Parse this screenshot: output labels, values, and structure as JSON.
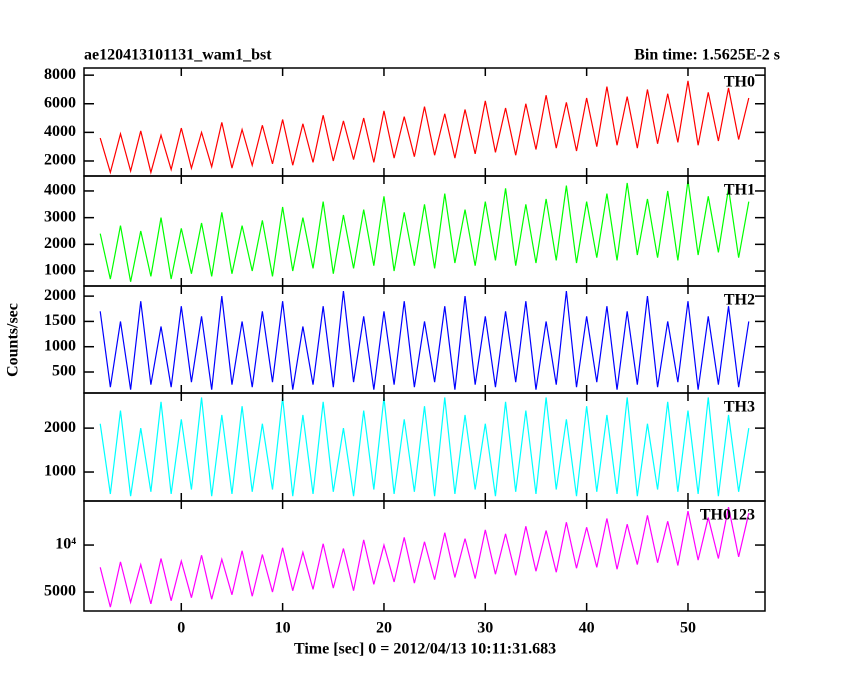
{
  "chart_data": {
    "type": "line",
    "title": "ae120413101131_wam1_bst",
    "subtitle": "Bin time: 1.5625E-2 s",
    "xlabel": "Time [sec] 0 = 2012/04/13 10:11:31.683",
    "ylabel": "Counts/sec",
    "xlim": [
      -9.6,
      57.6
    ],
    "xticks": [
      0,
      10,
      20,
      30,
      40,
      50
    ],
    "x": [
      -8,
      -7,
      -6,
      -5,
      -4,
      -3,
      -2,
      -1,
      0,
      1,
      2,
      3,
      4,
      5,
      6,
      7,
      8,
      9,
      10,
      11,
      12,
      13,
      14,
      15,
      16,
      17,
      18,
      19,
      20,
      21,
      22,
      23,
      24,
      25,
      26,
      27,
      28,
      29,
      30,
      31,
      32,
      33,
      34,
      35,
      36,
      37,
      38,
      39,
      40,
      41,
      42,
      43,
      44,
      45,
      46,
      47,
      48,
      49,
      50,
      51,
      52,
      53,
      54,
      55,
      56
    ],
    "series": [
      {
        "name": "TH0",
        "color": "#ff0000",
        "ylim": [
          950,
          8500
        ],
        "yticks": [
          2000,
          4000,
          6000,
          8000
        ],
        "log": false,
        "values": [
          3600,
          1200,
          3900,
          1300,
          4100,
          1200,
          3800,
          1400,
          4300,
          1500,
          4000,
          1600,
          4700,
          1500,
          4200,
          1700,
          4500,
          1800,
          4900,
          1700,
          4600,
          1900,
          5200,
          2000,
          4800,
          2100,
          5000,
          1900,
          5500,
          2200,
          5100,
          2300,
          5800,
          2400,
          5300,
          2200,
          5600,
          2500,
          6200,
          2600,
          5700,
          2400,
          6000,
          2800,
          6600,
          2900,
          6100,
          2700,
          6400,
          3000,
          7200,
          3100,
          6500,
          2900,
          7000,
          3200,
          6700,
          3300,
          7600,
          3100,
          6800,
          3400,
          7100,
          3500,
          6400
        ]
      },
      {
        "name": "TH1",
        "color": "#00ff00",
        "ylim": [
          440,
          4560
        ],
        "yticks": [
          1000,
          2000,
          3000,
          4000
        ],
        "log": false,
        "values": [
          2400,
          700,
          2700,
          600,
          2500,
          800,
          3000,
          700,
          2600,
          900,
          2800,
          800,
          3200,
          900,
          2700,
          1000,
          2900,
          800,
          3400,
          1000,
          3000,
          1100,
          3600,
          900,
          3100,
          1100,
          3300,
          1200,
          3800,
          1000,
          3200,
          1200,
          3500,
          1100,
          3900,
          1300,
          3300,
          1200,
          3600,
          1400,
          4100,
          1200,
          3500,
          1300,
          3700,
          1400,
          4200,
          1300,
          3600,
          1500,
          3900,
          1400,
          4300,
          1600,
          3700,
          1500,
          4000,
          1400,
          4400,
          1600,
          3800,
          1700,
          4100,
          1500,
          3600
        ]
      },
      {
        "name": "TH2",
        "color": "#0000ff",
        "ylim": [
          85,
          2200
        ],
        "yticks": [
          500,
          1000,
          1500,
          2000
        ],
        "log": false,
        "values": [
          1700,
          200,
          1500,
          150,
          1900,
          250,
          1400,
          200,
          1800,
          300,
          1600,
          150,
          2000,
          250,
          1500,
          200,
          1700,
          300,
          1900,
          150,
          1400,
          250,
          1800,
          200,
          2100,
          300,
          1600,
          150,
          1700,
          250,
          1900,
          200,
          1500,
          300,
          1800,
          150,
          2000,
          250,
          1600,
          200,
          1700,
          300,
          1900,
          150,
          1500,
          250,
          2100,
          200,
          1600,
          300,
          1800,
          150,
          1700,
          250,
          2000,
          200,
          1500,
          300,
          1900,
          150,
          1600,
          250,
          1800,
          200,
          1500
        ]
      },
      {
        "name": "TH3",
        "color": "#00ffff",
        "ylim": [
          340,
          2800
        ],
        "yticks": [
          1000,
          2000
        ],
        "log": false,
        "values": [
          2100,
          500,
          2400,
          450,
          2000,
          550,
          2600,
          500,
          2200,
          600,
          2700,
          450,
          2300,
          500,
          2500,
          550,
          2100,
          600,
          2700,
          450,
          2300,
          500,
          2600,
          550,
          2000,
          450,
          2400,
          600,
          2700,
          500,
          2200,
          550,
          2500,
          450,
          2700,
          500,
          2300,
          600,
          2100,
          450,
          2600,
          550,
          2400,
          500,
          2700,
          600,
          2200,
          450,
          2500,
          550,
          2300,
          500,
          2700,
          450,
          2100,
          600,
          2600,
          550,
          2400,
          500,
          2700,
          450,
          2300,
          550,
          2000
        ]
      },
      {
        "name": "TH0123",
        "color": "#ff00ff",
        "ylim": [
          3780,
          19150
        ],
        "yticks": [
          5000,
          {
            "value": 10000,
            "label": "10⁴"
          }
        ],
        "log": true,
        "values": [
          7200,
          4000,
          7800,
          4300,
          7500,
          4200,
          8200,
          4400,
          7900,
          4600,
          8600,
          4500,
          8100,
          4800,
          9200,
          4700,
          8700,
          5000,
          9600,
          5100,
          9000,
          5200,
          10200,
          5300,
          9500,
          5100,
          10800,
          5600,
          10000,
          5800,
          11200,
          5700,
          10500,
          6000,
          12000,
          6200,
          11000,
          6100,
          12500,
          6500,
          11800,
          6400,
          13200,
          6800,
          12400,
          6700,
          14000,
          7100,
          13000,
          7200,
          14800,
          7000,
          13600,
          7500,
          15500,
          7700,
          14200,
          7400,
          16500,
          8000,
          15000,
          8200,
          17500,
          8400,
          16000
        ]
      }
    ]
  }
}
